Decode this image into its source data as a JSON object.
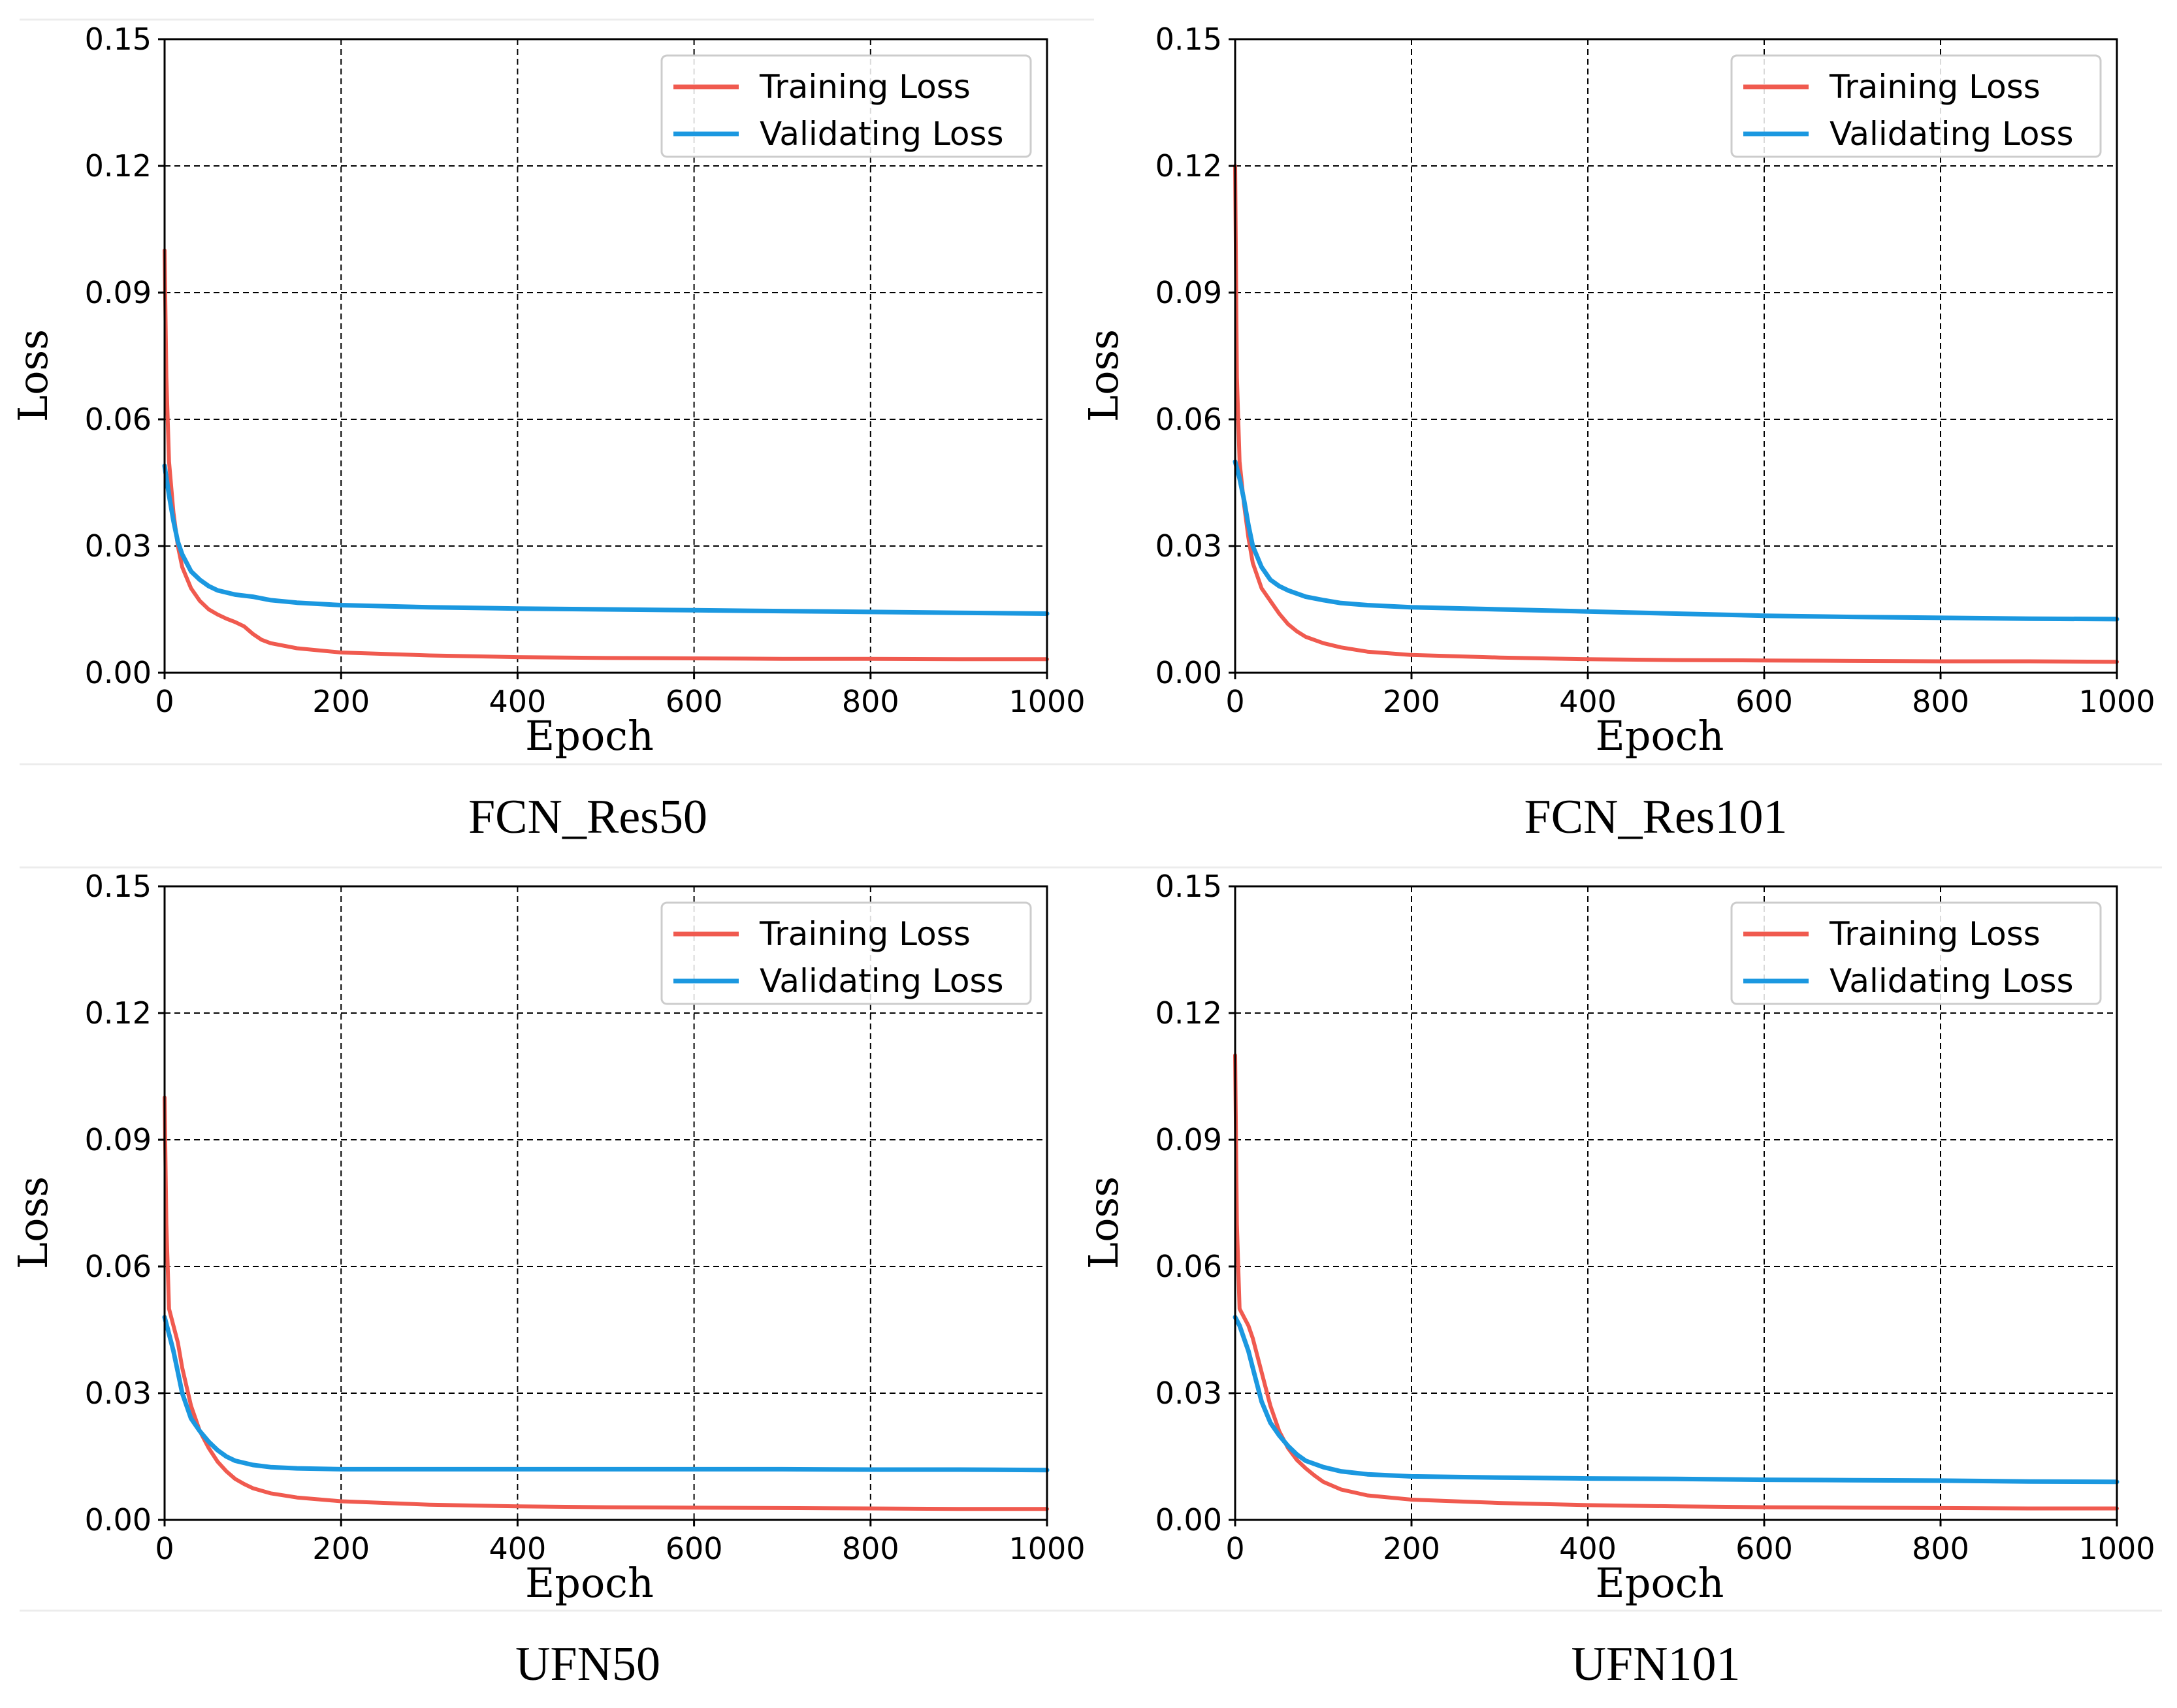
{
  "colors": {
    "training": "#f05a4f",
    "validating": "#1b98e0"
  },
  "chart_data": [
    {
      "type": "line",
      "caption": "FCN_Res50",
      "xlabel": "Epoch",
      "ylabel": "Loss",
      "xlim": [
        0,
        1000
      ],
      "ylim": [
        0,
        0.15
      ],
      "xticks": [
        0,
        200,
        400,
        600,
        800,
        1000
      ],
      "xtick_labels": [
        "0",
        "200",
        "400",
        "600",
        "800",
        "1000"
      ],
      "yticks": [
        0,
        0.03,
        0.06,
        0.09,
        0.12,
        0.15
      ],
      "ytick_labels": [
        "0.00",
        "0.03",
        "0.06",
        "0.09",
        "0.12",
        "0.15"
      ],
      "grid": true,
      "legend": {
        "position": "top-right",
        "entries": [
          "Training Loss",
          "Validating Loss"
        ]
      },
      "series": [
        {
          "name": "Training Loss",
          "x": [
            0,
            2,
            5,
            10,
            15,
            20,
            30,
            40,
            50,
            60,
            70,
            80,
            90,
            100,
            110,
            120,
            150,
            200,
            300,
            400,
            500,
            600,
            700,
            800,
            900,
            1000
          ],
          "y": [
            0.1,
            0.07,
            0.05,
            0.038,
            0.03,
            0.025,
            0.02,
            0.017,
            0.015,
            0.0138,
            0.0128,
            0.012,
            0.011,
            0.0092,
            0.0078,
            0.007,
            0.0058,
            0.0048,
            0.0041,
            0.0037,
            0.0035,
            0.0034,
            0.0033,
            0.0033,
            0.0032,
            0.0032
          ]
        },
        {
          "name": "Validating Loss",
          "x": [
            0,
            5,
            10,
            15,
            20,
            30,
            40,
            50,
            60,
            80,
            100,
            120,
            150,
            200,
            300,
            400,
            500,
            600,
            700,
            800,
            900,
            1000
          ],
          "y": [
            0.049,
            0.042,
            0.036,
            0.031,
            0.028,
            0.024,
            0.022,
            0.0205,
            0.0195,
            0.0185,
            0.018,
            0.0172,
            0.0166,
            0.016,
            0.0155,
            0.0152,
            0.015,
            0.0148,
            0.0146,
            0.0144,
            0.0142,
            0.014
          ]
        }
      ]
    },
    {
      "type": "line",
      "caption": "FCN_Res101",
      "xlabel": "Epoch",
      "ylabel": "Loss",
      "xlim": [
        0,
        1000
      ],
      "ylim": [
        0,
        0.15
      ],
      "xticks": [
        0,
        200,
        400,
        600,
        800,
        1000
      ],
      "xtick_labels": [
        "0",
        "200",
        "400",
        "600",
        "800",
        "1000"
      ],
      "yticks": [
        0,
        0.03,
        0.06,
        0.09,
        0.12,
        0.15
      ],
      "ytick_labels": [
        "0.00",
        "0.03",
        "0.06",
        "0.09",
        "0.12",
        "0.15"
      ],
      "grid": true,
      "legend": {
        "position": "top-right",
        "entries": [
          "Training Loss",
          "Validating Loss"
        ]
      },
      "series": [
        {
          "name": "Training Loss",
          "x": [
            0,
            2,
            5,
            10,
            15,
            20,
            30,
            40,
            50,
            60,
            70,
            80,
            100,
            120,
            150,
            200,
            300,
            400,
            500,
            600,
            700,
            800,
            900,
            1000
          ],
          "y": [
            0.12,
            0.07,
            0.05,
            0.04,
            0.032,
            0.026,
            0.02,
            0.017,
            0.014,
            0.0115,
            0.0098,
            0.0085,
            0.007,
            0.006,
            0.005,
            0.0042,
            0.0036,
            0.0032,
            0.003,
            0.0029,
            0.0028,
            0.0027,
            0.0027,
            0.0026
          ]
        },
        {
          "name": "Validating Loss",
          "x": [
            0,
            5,
            10,
            15,
            20,
            30,
            40,
            50,
            60,
            80,
            100,
            120,
            150,
            200,
            300,
            400,
            500,
            600,
            700,
            800,
            900,
            1000
          ],
          "y": [
            0.05,
            0.046,
            0.041,
            0.035,
            0.03,
            0.025,
            0.022,
            0.0205,
            0.0195,
            0.018,
            0.0172,
            0.0165,
            0.016,
            0.0155,
            0.015,
            0.0145,
            0.014,
            0.0135,
            0.0132,
            0.013,
            0.0128,
            0.0127
          ]
        }
      ]
    },
    {
      "type": "line",
      "caption": "UFN50",
      "xlabel": "Epoch",
      "ylabel": "Loss",
      "xlim": [
        0,
        1000
      ],
      "ylim": [
        0,
        0.15
      ],
      "xticks": [
        0,
        200,
        400,
        600,
        800,
        1000
      ],
      "xtick_labels": [
        "0",
        "200",
        "400",
        "600",
        "800",
        "1000"
      ],
      "yticks": [
        0,
        0.03,
        0.06,
        0.09,
        0.12,
        0.15
      ],
      "ytick_labels": [
        "0.00",
        "0.03",
        "0.06",
        "0.09",
        "0.12",
        "0.15"
      ],
      "grid": true,
      "legend": {
        "position": "top-right",
        "entries": [
          "Training Loss",
          "Validating Loss"
        ]
      },
      "series": [
        {
          "name": "Training Loss",
          "x": [
            0,
            2,
            5,
            10,
            15,
            20,
            30,
            40,
            50,
            60,
            70,
            80,
            90,
            100,
            120,
            150,
            200,
            300,
            400,
            500,
            600,
            700,
            800,
            900,
            1000
          ],
          "y": [
            0.1,
            0.07,
            0.05,
            0.046,
            0.042,
            0.036,
            0.027,
            0.021,
            0.017,
            0.0138,
            0.0115,
            0.0097,
            0.0085,
            0.0075,
            0.0063,
            0.0053,
            0.0044,
            0.0036,
            0.0032,
            0.003,
            0.0029,
            0.0028,
            0.0027,
            0.0026,
            0.0026
          ]
        },
        {
          "name": "Validating Loss",
          "x": [
            0,
            5,
            10,
            15,
            20,
            30,
            40,
            50,
            60,
            70,
            80,
            100,
            120,
            150,
            200,
            300,
            400,
            500,
            600,
            700,
            800,
            900,
            1000
          ],
          "y": [
            0.048,
            0.044,
            0.04,
            0.035,
            0.03,
            0.024,
            0.021,
            0.0185,
            0.0165,
            0.015,
            0.014,
            0.013,
            0.0125,
            0.0122,
            0.012,
            0.012,
            0.012,
            0.012,
            0.012,
            0.012,
            0.0119,
            0.0119,
            0.0118
          ]
        }
      ]
    },
    {
      "type": "line",
      "caption": "UFN101",
      "xlabel": "Epoch",
      "ylabel": "Loss",
      "xlim": [
        0,
        1000
      ],
      "ylim": [
        0,
        0.15
      ],
      "xticks": [
        0,
        200,
        400,
        600,
        800,
        1000
      ],
      "xtick_labels": [
        "0",
        "200",
        "400",
        "600",
        "800",
        "1000"
      ],
      "yticks": [
        0,
        0.03,
        0.06,
        0.09,
        0.12,
        0.15
      ],
      "ytick_labels": [
        "0.00",
        "0.03",
        "0.06",
        "0.09",
        "0.12",
        "0.15"
      ],
      "grid": true,
      "legend": {
        "position": "top-right",
        "entries": [
          "Training Loss",
          "Validating Loss"
        ]
      },
      "series": [
        {
          "name": "Training Loss",
          "x": [
            0,
            2,
            5,
            10,
            15,
            20,
            30,
            40,
            50,
            60,
            70,
            80,
            90,
            100,
            120,
            150,
            200,
            300,
            400,
            500,
            600,
            700,
            800,
            900,
            1000
          ],
          "y": [
            0.11,
            0.07,
            0.05,
            0.048,
            0.046,
            0.043,
            0.035,
            0.027,
            0.021,
            0.017,
            0.0142,
            0.0122,
            0.0105,
            0.009,
            0.0072,
            0.0058,
            0.0048,
            0.004,
            0.0035,
            0.0032,
            0.003,
            0.0029,
            0.0028,
            0.0027,
            0.0027
          ]
        },
        {
          "name": "Validating Loss",
          "x": [
            0,
            5,
            10,
            15,
            20,
            30,
            40,
            50,
            60,
            70,
            80,
            100,
            120,
            150,
            200,
            300,
            400,
            500,
            600,
            700,
            800,
            900,
            1000
          ],
          "y": [
            0.048,
            0.046,
            0.043,
            0.04,
            0.036,
            0.028,
            0.023,
            0.02,
            0.0175,
            0.0155,
            0.014,
            0.0125,
            0.0115,
            0.0108,
            0.0103,
            0.01,
            0.0098,
            0.0097,
            0.0095,
            0.0094,
            0.0093,
            0.0091,
            0.009
          ]
        }
      ]
    }
  ]
}
